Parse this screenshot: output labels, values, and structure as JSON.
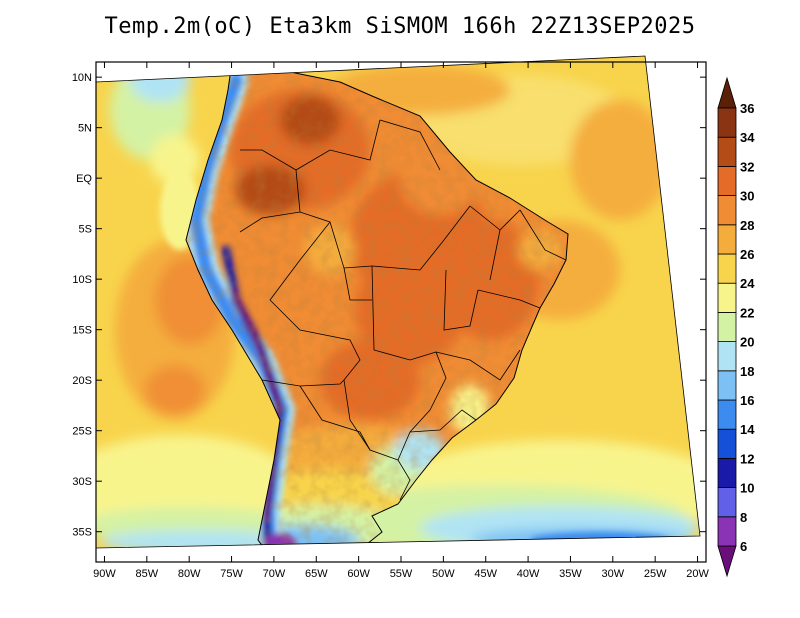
{
  "title": "Temp.2m(oC) Eta3km SiSMOM 166h 22Z13SEP2025",
  "map": {
    "lat_ticks": [
      {
        "value": 10,
        "label": "10N"
      },
      {
        "value": 5,
        "label": "5N"
      },
      {
        "value": 0,
        "label": "EQ"
      },
      {
        "value": -5,
        "label": "5S"
      },
      {
        "value": -10,
        "label": "10S"
      },
      {
        "value": -15,
        "label": "15S"
      },
      {
        "value": -20,
        "label": "20S"
      },
      {
        "value": -25,
        "label": "25S"
      },
      {
        "value": -30,
        "label": "30S"
      },
      {
        "value": -35,
        "label": "35S"
      }
    ],
    "lon_ticks": [
      {
        "value": -90,
        "label": "90W"
      },
      {
        "value": -85,
        "label": "85W"
      },
      {
        "value": -80,
        "label": "80W"
      },
      {
        "value": -75,
        "label": "75W"
      },
      {
        "value": -70,
        "label": "70W"
      },
      {
        "value": -65,
        "label": "65W"
      },
      {
        "value": -60,
        "label": "60W"
      },
      {
        "value": -55,
        "label": "55W"
      },
      {
        "value": -50,
        "label": "50W"
      },
      {
        "value": -45,
        "label": "45W"
      },
      {
        "value": -40,
        "label": "40W"
      },
      {
        "value": -35,
        "label": "35W"
      },
      {
        "value": -30,
        "label": "30W"
      },
      {
        "value": -25,
        "label": "25W"
      },
      {
        "value": -20,
        "label": "20W"
      }
    ],
    "lon_range": [
      -91,
      -19
    ],
    "lat_range": [
      -38,
      11.5
    ]
  },
  "colorbar": {
    "levels": [
      6,
      8,
      10,
      12,
      14,
      16,
      18,
      20,
      22,
      24,
      26,
      28,
      30,
      32,
      34,
      36
    ],
    "colors": [
      "#6a0f7a",
      "#8b33b5",
      "#6060e8",
      "#1a1aa8",
      "#1450d8",
      "#3c8cf0",
      "#7cc0f4",
      "#b0e4f4",
      "#d4f2a4",
      "#f8f48c",
      "#f8d44c",
      "#f4ac3c",
      "#f08c34",
      "#e46c28",
      "#b44c18",
      "#8a3414",
      "#5a2008"
    ]
  }
}
